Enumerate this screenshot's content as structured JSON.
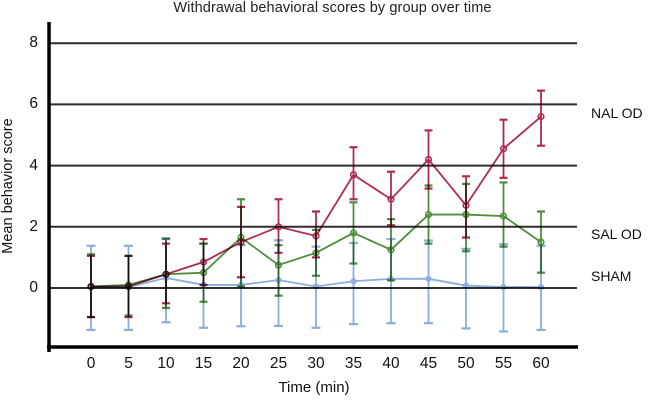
{
  "figure": {
    "title": "Withdrawal behavioral scores by group over time",
    "x_axis_label": "Time (min)",
    "y_axis_label": "Mean behavior score"
  },
  "chart_data": {
    "type": "line",
    "title": "Withdrawal behavioral scores by group over time",
    "xlabel": "Time (min)",
    "ylabel": "Mean behavior score",
    "x": [
      0,
      5,
      10,
      15,
      20,
      25,
      30,
      35,
      40,
      45,
      50,
      55,
      60
    ],
    "y_ticks": [
      0,
      2,
      4,
      6,
      8
    ],
    "ylim": [
      -2,
      8.7
    ],
    "grid": true,
    "error_bars": true,
    "legend_position": "right-outside",
    "axis_color": "#000000",
    "grid_color": "#2f2f2f",
    "series": [
      {
        "name": "SHAM",
        "color": "#8aaedd",
        "values": [
          0.03,
          0.03,
          0.33,
          0.1,
          0.1,
          0.26,
          0.05,
          0.22,
          0.3,
          0.3,
          0.08,
          0.03,
          0.03
        ],
        "err_up": [
          1.35,
          1.35,
          1.3,
          1.35,
          1.3,
          1.3,
          1.3,
          1.25,
          1.3,
          1.25,
          1.2,
          1.4,
          1.35
        ],
        "err_dn": [
          1.4,
          1.4,
          1.45,
          1.4,
          1.35,
          1.5,
          1.35,
          1.4,
          1.45,
          1.45,
          1.4,
          1.45,
          1.4
        ],
        "label_at_value": 0.38,
        "marker_radius": 2.3
      },
      {
        "name": "SAL OD",
        "color": "#4f8e3c",
        "values": [
          0.05,
          0.1,
          0.45,
          0.5,
          1.65,
          0.75,
          1.15,
          1.8,
          1.25,
          2.4,
          2.4,
          2.35,
          1.5
        ],
        "err_up": [
          1.05,
          0.95,
          1.15,
          0.95,
          1.25,
          0.65,
          0.75,
          1.0,
          1.0,
          0.95,
          1.0,
          1.1,
          1.0
        ],
        "err_dn": [
          1.0,
          1.0,
          1.1,
          0.95,
          1.6,
          1.0,
          0.75,
          1.0,
          1.0,
          0.95,
          1.2,
          1.0,
          1.0
        ],
        "label_at_value": 1.76,
        "marker_radius": 2.8
      },
      {
        "name": "NAL OD",
        "color": "#b02c50",
        "values": [
          0.05,
          0.05,
          0.45,
          0.85,
          1.5,
          2.0,
          1.7,
          3.7,
          2.9,
          4.2,
          2.7,
          4.55,
          5.6
        ],
        "err_up": [
          1.0,
          1.0,
          1.0,
          0.75,
          1.15,
          0.9,
          0.8,
          0.9,
          0.9,
          0.95,
          0.95,
          0.95,
          0.85
        ],
        "err_dn": [
          1.0,
          1.0,
          0.95,
          0.75,
          1.15,
          0.85,
          0.7,
          0.8,
          0.85,
          0.95,
          1.05,
          0.95,
          0.95
        ],
        "label_at_value": 5.72,
        "marker_radius": 2.8
      }
    ]
  }
}
